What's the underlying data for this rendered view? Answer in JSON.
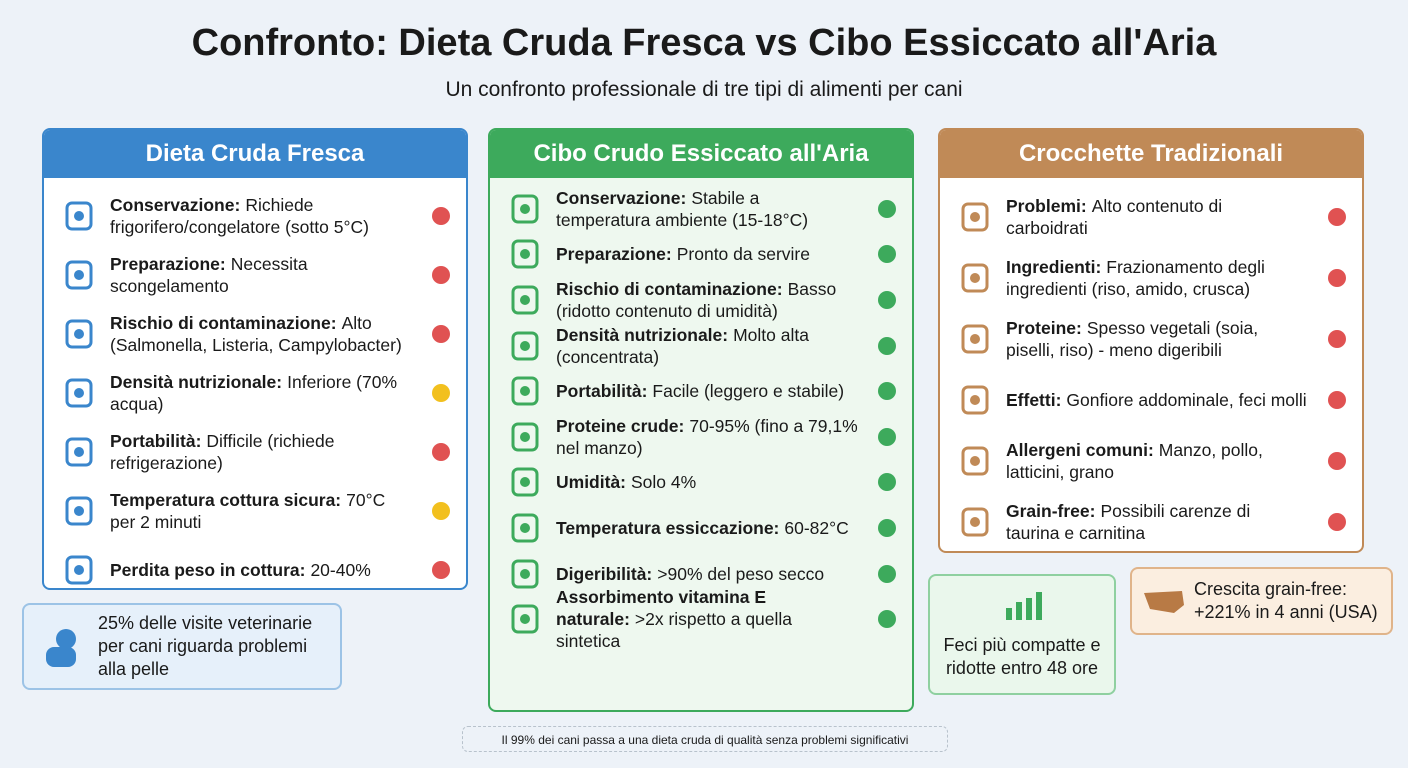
{
  "header": {
    "title": "Confronto: Dieta Cruda Fresca vs Cibo Essiccato all'Aria",
    "subtitle": "Un confronto professionale di tre tipi di alimenti per cani"
  },
  "columns": [
    {
      "title": "Dieta Cruda Fresca",
      "color": "#3a86cc",
      "items": [
        {
          "label": "Conservazione:",
          "text": "Richiede frigorifero/congelatore (sotto 5°C)",
          "color": "#e05252"
        },
        {
          "label": "Preparazione:",
          "text": "Necessita scongelamento",
          "color": "#e05252"
        },
        {
          "label": "Rischio di contaminazione:",
          "text": "Alto (Salmonella, Listeria, Campylobacter)",
          "color": "#e05252"
        },
        {
          "label": "Densità nutrizionale:",
          "text": "Inferiore (70% acqua)",
          "color": "#f2c01e"
        },
        {
          "label": "Portabilità:",
          "text": "Difficile (richiede refrigerazione)",
          "color": "#e05252"
        },
        {
          "label": "Temperatura cottura sicura:",
          "text": "70°C per 2 minuti",
          "color": "#f2c01e"
        },
        {
          "label": "Perdita peso in cottura:",
          "text": "20-40%",
          "color": "#e05252"
        }
      ]
    },
    {
      "title": "Cibo Crudo Essiccato all'Aria",
      "color": "#3daa5c",
      "items": [
        {
          "label": "Conservazione:",
          "text": "Stabile a temperatura ambiente (15-18°C)",
          "color": "#3daa5c"
        },
        {
          "label": "Preparazione:",
          "text": "Pronto da servire",
          "color": "#3daa5c"
        },
        {
          "label": "Rischio di contaminazione:",
          "text": "Basso (ridotto contenuto di umidità)",
          "color": "#3daa5c"
        },
        {
          "label": "Densità nutrizionale:",
          "text": "Molto alta (concentrata)",
          "color": "#3daa5c"
        },
        {
          "label": "Portabilità:",
          "text": "Facile (leggero e stabile)",
          "color": "#3daa5c"
        },
        {
          "label": "Proteine crude:",
          "text": "70-95% (fino a 79,1% nel manzo)",
          "color": "#3daa5c"
        },
        {
          "label": "Umidità:",
          "text": "Solo 4%",
          "color": "#3daa5c"
        },
        {
          "label": "Temperatura essiccazione:",
          "text": "60-82°C",
          "color": "#3daa5c"
        },
        {
          "label": "Digeribilità:",
          "text": ">90% del peso secco",
          "color": "#3daa5c"
        },
        {
          "label": "Assorbimento vitamina E naturale:",
          "text": ">2x rispetto a quella sintetica",
          "color": "#3daa5c"
        }
      ]
    },
    {
      "title": "Crocchette Tradizionali",
      "color": "#c08a57",
      "items": [
        {
          "label": "Problemi:",
          "text": "Alto contenuto di carboidrati",
          "color": "#e05252"
        },
        {
          "label": "Ingredienti:",
          "text": "Frazionamento degli ingredienti (riso, amido, crusca)",
          "color": "#e05252"
        },
        {
          "label": "Proteine:",
          "text": "Spesso vegetali (soia, piselli, riso) - meno digeribili",
          "color": "#e05252"
        },
        {
          "label": "Effetti:",
          "text": "Gonfiore addominale, feci molli",
          "color": "#e05252"
        },
        {
          "label": "Allergeni comuni:",
          "text": "Manzo, pollo, latticini, grano",
          "color": "#e05252"
        },
        {
          "label": "Grain-free:",
          "text": "Possibili carenze di taurina e carnitina",
          "color": "#e05252"
        }
      ]
    }
  ],
  "callouts": [
    "25% delle visite veterinarie per cani riguarda problemi alla pelle",
    "Feci più compatte e ridotte entro 48 ore",
    "Crescita grain-free: +221% in 4 anni (USA)"
  ],
  "footer": "Il 99% dei cani passa a una dieta cruda di qualità senza problemi significativi"
}
